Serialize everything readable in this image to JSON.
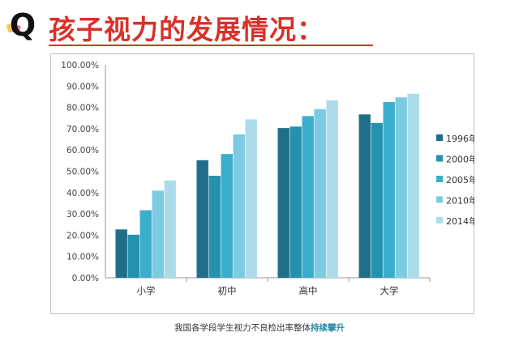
{
  "header": {
    "title": "孩子视力的发展情况：",
    "logo_letter": "Q"
  },
  "caption": {
    "prefix": "我国各学段学生视力不良检出率整体",
    "highlight": "持续攀升"
  },
  "colors": {
    "title": "#d9302a",
    "series": [
      "#1f6f8b",
      "#2592ad",
      "#3aaecb",
      "#7ccbe0",
      "#acdcea"
    ]
  },
  "chart_data": {
    "type": "bar",
    "title": "",
    "xlabel": "",
    "ylabel": "",
    "categories": [
      "小学",
      "初中",
      "高中",
      "大学"
    ],
    "series": [
      {
        "name": "1996年",
        "values": [
          22.7,
          55.2,
          70.3,
          76.7
        ]
      },
      {
        "name": "2000年",
        "values": [
          20.2,
          47.9,
          71.0,
          72.7
        ]
      },
      {
        "name": "2005年",
        "values": [
          31.7,
          58.1,
          75.9,
          82.5
        ]
      },
      {
        "name": "2010年",
        "values": [
          40.9,
          67.3,
          79.2,
          84.7
        ]
      },
      {
        "name": "2014年",
        "values": [
          45.7,
          74.4,
          83.3,
          86.4
        ]
      }
    ],
    "ylim": [
      0,
      100
    ],
    "yticks": [
      "0.00%",
      "10.00%",
      "20.00%",
      "30.00%",
      "40.00%",
      "50.00%",
      "60.00%",
      "70.00%",
      "80.00%",
      "90.00%",
      "100.00%"
    ],
    "grid": false,
    "legend": "right"
  }
}
